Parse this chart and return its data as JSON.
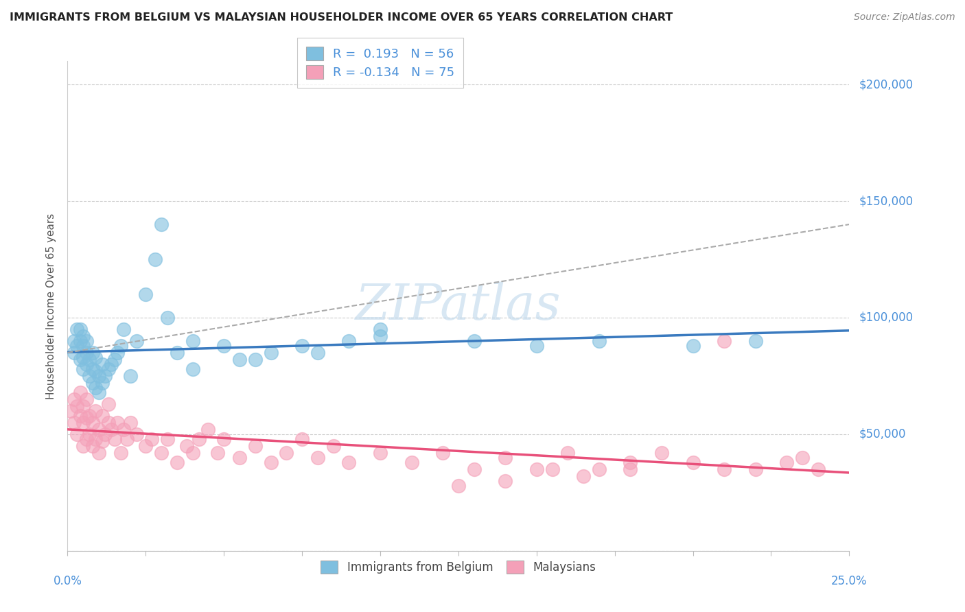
{
  "title": "IMMIGRANTS FROM BELGIUM VS MALAYSIAN HOUSEHOLDER INCOME OVER 65 YEARS CORRELATION CHART",
  "source": "Source: ZipAtlas.com",
  "ylabel": "Householder Income Over 65 years",
  "xlim": [
    0.0,
    0.25
  ],
  "ylim": [
    0,
    210000
  ],
  "color_blue": "#7fbfdf",
  "color_pink": "#f4a0b8",
  "color_blue_line": "#3a7abf",
  "color_pink_line": "#e8507a",
  "color_grey_dash": "#aaaaaa",
  "watermark_text": "ZIPatlas",
  "blue_r": 0.193,
  "blue_n": 56,
  "pink_r": -0.134,
  "pink_n": 75,
  "blue_scatter_x": [
    0.002,
    0.002,
    0.003,
    0.003,
    0.004,
    0.004,
    0.004,
    0.005,
    0.005,
    0.005,
    0.005,
    0.006,
    0.006,
    0.006,
    0.007,
    0.007,
    0.008,
    0.008,
    0.008,
    0.009,
    0.009,
    0.009,
    0.01,
    0.01,
    0.011,
    0.011,
    0.012,
    0.013,
    0.014,
    0.015,
    0.016,
    0.017,
    0.018,
    0.02,
    0.022,
    0.025,
    0.028,
    0.03,
    0.032,
    0.035,
    0.04,
    0.05,
    0.06,
    0.08,
    0.1,
    0.13,
    0.15,
    0.17,
    0.2,
    0.22,
    0.04,
    0.055,
    0.065,
    0.075,
    0.09,
    0.1
  ],
  "blue_scatter_y": [
    90000,
    85000,
    88000,
    95000,
    82000,
    90000,
    95000,
    78000,
    83000,
    88000,
    92000,
    80000,
    85000,
    90000,
    75000,
    82000,
    72000,
    78000,
    85000,
    70000,
    77000,
    83000,
    68000,
    75000,
    72000,
    80000,
    75000,
    78000,
    80000,
    82000,
    85000,
    88000,
    95000,
    75000,
    90000,
    110000,
    125000,
    140000,
    100000,
    85000,
    90000,
    88000,
    82000,
    85000,
    95000,
    90000,
    88000,
    90000,
    88000,
    90000,
    78000,
    82000,
    85000,
    88000,
    90000,
    92000
  ],
  "pink_scatter_x": [
    0.001,
    0.002,
    0.002,
    0.003,
    0.003,
    0.004,
    0.004,
    0.005,
    0.005,
    0.005,
    0.006,
    0.006,
    0.006,
    0.007,
    0.007,
    0.008,
    0.008,
    0.009,
    0.009,
    0.01,
    0.01,
    0.011,
    0.011,
    0.012,
    0.013,
    0.013,
    0.014,
    0.015,
    0.016,
    0.017,
    0.018,
    0.019,
    0.02,
    0.022,
    0.025,
    0.027,
    0.03,
    0.032,
    0.035,
    0.038,
    0.04,
    0.042,
    0.045,
    0.048,
    0.05,
    0.055,
    0.06,
    0.065,
    0.07,
    0.075,
    0.08,
    0.085,
    0.09,
    0.1,
    0.11,
    0.12,
    0.13,
    0.14,
    0.15,
    0.16,
    0.17,
    0.18,
    0.19,
    0.2,
    0.21,
    0.22,
    0.23,
    0.235,
    0.24,
    0.21,
    0.18,
    0.165,
    0.155,
    0.14,
    0.125
  ],
  "pink_scatter_y": [
    60000,
    55000,
    65000,
    50000,
    62000,
    58000,
    68000,
    45000,
    55000,
    62000,
    48000,
    57000,
    65000,
    50000,
    58000,
    45000,
    55000,
    48000,
    60000,
    42000,
    52000,
    47000,
    58000,
    50000,
    55000,
    63000,
    52000,
    48000,
    55000,
    42000,
    52000,
    48000,
    55000,
    50000,
    45000,
    48000,
    42000,
    48000,
    38000,
    45000,
    42000,
    48000,
    52000,
    42000,
    48000,
    40000,
    45000,
    38000,
    42000,
    48000,
    40000,
    45000,
    38000,
    42000,
    38000,
    42000,
    35000,
    40000,
    35000,
    42000,
    35000,
    38000,
    42000,
    38000,
    35000,
    35000,
    38000,
    40000,
    35000,
    90000,
    35000,
    32000,
    35000,
    30000,
    28000
  ]
}
